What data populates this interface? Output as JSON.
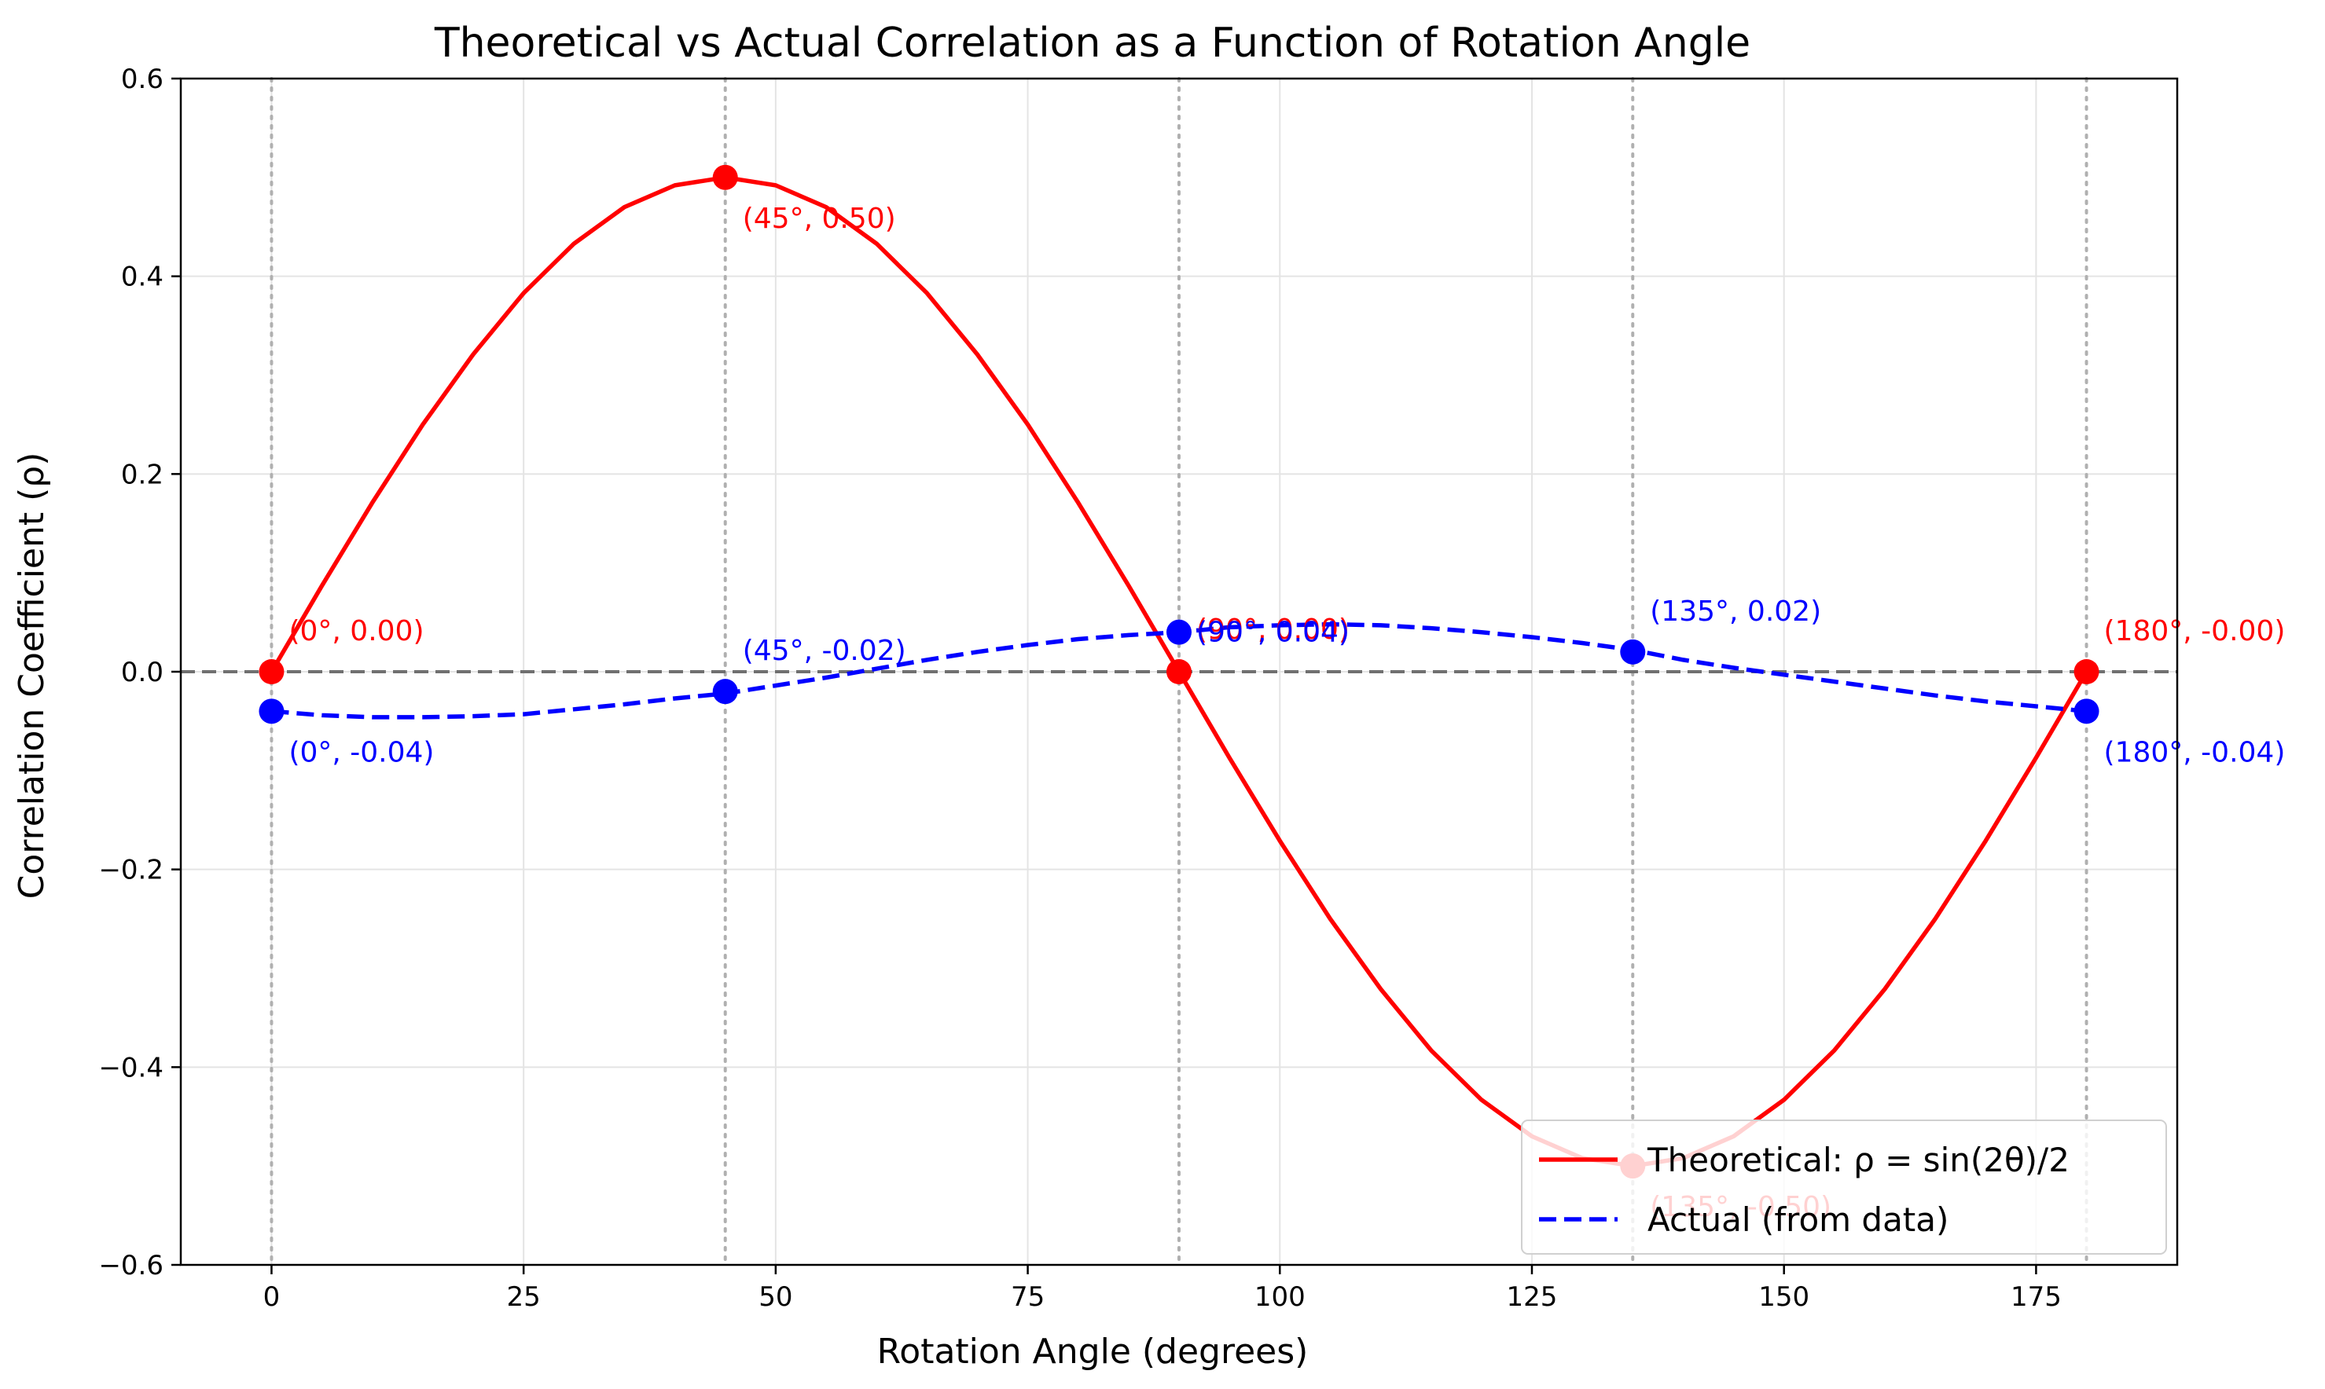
{
  "chart_data": {
    "type": "line",
    "title": "Theoretical vs Actual Correlation as a Function of Rotation Angle",
    "xlabel": "Rotation Angle (degrees)",
    "ylabel": "Correlation Coefficient (ρ)",
    "xlim": [
      -9,
      189
    ],
    "ylim": [
      -0.6,
      0.6
    ],
    "xticks": [
      0,
      25,
      50,
      75,
      100,
      125,
      150,
      175
    ],
    "yticks": [
      -0.6,
      -0.4,
      -0.2,
      0.0,
      0.2,
      0.4,
      0.6
    ],
    "xtick_labels": [
      "0",
      "25",
      "50",
      "75",
      "100",
      "125",
      "150",
      "175"
    ],
    "ytick_labels": [
      "−0.6",
      "−0.4",
      "−0.2",
      "0.0",
      "0.2",
      "0.4",
      "0.6"
    ],
    "grid": true,
    "legend_position": "lower-right",
    "vlines": [
      0,
      45,
      90,
      135,
      180
    ],
    "hline": 0,
    "series": [
      {
        "name": "Theoretical: ρ = sin(2θ)/2",
        "color": "#ff0000",
        "style": "solid",
        "x": [
          0,
          5,
          10,
          15,
          20,
          25,
          30,
          35,
          40,
          45,
          50,
          55,
          60,
          65,
          70,
          75,
          80,
          85,
          90,
          95,
          100,
          105,
          110,
          115,
          120,
          125,
          130,
          135,
          140,
          145,
          150,
          155,
          160,
          165,
          170,
          175,
          180
        ],
        "y": [
          0.0,
          0.087,
          0.171,
          0.25,
          0.321,
          0.383,
          0.433,
          0.47,
          0.492,
          0.5,
          0.492,
          0.47,
          0.433,
          0.383,
          0.321,
          0.25,
          0.171,
          0.087,
          0.0,
          -0.087,
          -0.171,
          -0.25,
          -0.321,
          -0.383,
          -0.433,
          -0.47,
          -0.492,
          -0.5,
          -0.492,
          -0.47,
          -0.433,
          -0.383,
          -0.321,
          -0.25,
          -0.171,
          -0.087,
          0.0
        ],
        "markers": [
          {
            "x": 0,
            "y": 0.0,
            "label": "(0°, 0.00)",
            "pos": "above"
          },
          {
            "x": 45,
            "y": 0.5,
            "label": "(45°, 0.50)",
            "pos": "below"
          },
          {
            "x": 90,
            "y": 0.0,
            "label": "(90°, 0.00)",
            "pos": "above-tight"
          },
          {
            "x": 135,
            "y": -0.5,
            "label": "(135°, -0.50)",
            "pos": "below"
          },
          {
            "x": 180,
            "y": 0.0,
            "label": "(180°, -0.00)",
            "pos": "above"
          }
        ]
      },
      {
        "name": "Actual (from data)",
        "color": "#0000ff",
        "style": "dashed",
        "x": [
          0,
          5,
          10,
          15,
          20,
          25,
          30,
          35,
          40,
          45,
          50,
          55,
          60,
          65,
          70,
          75,
          80,
          85,
          90,
          95,
          100,
          105,
          110,
          115,
          120,
          125,
          130,
          135,
          140,
          145,
          150,
          155,
          160,
          165,
          170,
          175,
          180
        ],
        "y": [
          -0.04,
          -0.044,
          -0.046,
          -0.046,
          -0.045,
          -0.043,
          -0.038,
          -0.033,
          -0.027,
          -0.022,
          -0.014,
          -0.006,
          0.003,
          0.012,
          0.02,
          0.027,
          0.033,
          0.037,
          0.04,
          0.045,
          0.047,
          0.048,
          0.047,
          0.044,
          0.04,
          0.035,
          0.029,
          0.022,
          0.012,
          0.004,
          -0.003,
          -0.01,
          -0.017,
          -0.024,
          -0.03,
          -0.035,
          -0.04
        ],
        "markers": [
          {
            "x": 0,
            "y": -0.04,
            "label": "(0°, -0.04)",
            "pos": "below"
          },
          {
            "x": 45,
            "y": -0.02,
            "label": "(45°, -0.02)",
            "pos": "above"
          },
          {
            "x": 90,
            "y": 0.04,
            "label": "(90°, 0.04)",
            "pos": "below-tight"
          },
          {
            "x": 135,
            "y": 0.02,
            "label": "(135°, 0.02)",
            "pos": "above"
          },
          {
            "x": 180,
            "y": -0.04,
            "label": "(180°, -0.04)",
            "pos": "below"
          }
        ]
      }
    ]
  }
}
